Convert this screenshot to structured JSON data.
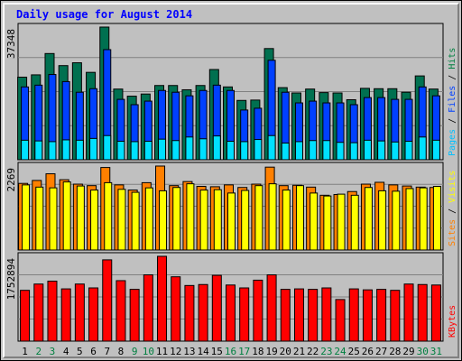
{
  "chart_data": {
    "title": "Daily usage for August 2014",
    "type": "bar",
    "days": [
      "1",
      "2",
      "3",
      "4",
      "5",
      "6",
      "7",
      "8",
      "9",
      "10",
      "11",
      "12",
      "13",
      "14",
      "15",
      "16",
      "17",
      "18",
      "19",
      "20",
      "21",
      "22",
      "23",
      "24",
      "25",
      "26",
      "27",
      "28",
      "29",
      "30",
      "31"
    ],
    "weekend_days": [
      "2",
      "3",
      "9",
      "10",
      "16",
      "17",
      "23",
      "24",
      "30",
      "31"
    ],
    "panels": [
      {
        "id": "hits",
        "ymax_label": "37348",
        "ymax": 37348,
        "ylabel": [
          "Pages",
          " / ",
          "Files",
          " / ",
          "Hits"
        ],
        "ylabel_colors": [
          "#00c0ff",
          "#000000",
          "#0040ff",
          "#000000",
          "#008040"
        ],
        "series": [
          {
            "name": "Hits",
            "color": "#007050",
            "values": [
              23250,
              23900,
              29900,
              26500,
              27300,
              24600,
              37348,
              19900,
              17900,
              18500,
              20900,
              20900,
              19700,
              20900,
              25400,
              20500,
              16700,
              16800,
              31300,
              20300,
              18800,
              19900,
              18900,
              18800,
              16900,
              20100,
              20000,
              20000,
              19000,
              23600,
              19900
            ]
          },
          {
            "name": "Files",
            "color": "#0040ff",
            "values": [
              20500,
              21000,
              24000,
              22000,
              19000,
              20000,
              31000,
              17000,
              15500,
              16500,
              19500,
              19000,
              18000,
              19500,
              21000,
              19500,
              14000,
              14500,
              28000,
              19000,
              16000,
              16500,
              16000,
              16000,
              15500,
              17500,
              17500,
              17000,
              17000,
              20500,
              18000
            ]
          },
          {
            "name": "Pages",
            "color": "#00e0ff",
            "values": [
              5500,
              5300,
              5100,
              5600,
              5500,
              6000,
              6800,
              5200,
              5100,
              5200,
              5800,
              5400,
              6400,
              5900,
              6700,
              5200,
              5100,
              5700,
              6800,
              4700,
              5100,
              5400,
              5400,
              4900,
              4800,
              5500,
              5300,
              5000,
              5200,
              6400,
              5500
            ]
          }
        ]
      },
      {
        "id": "visits",
        "ymax_label": "2269",
        "ymax": 2269,
        "ylabel": [
          "Sites",
          " / ",
          "Visits"
        ],
        "ylabel_colors": [
          "#ff8000",
          "#000000",
          "#ffff00"
        ],
        "series": [
          {
            "name": "Sites",
            "color": "#ff8000",
            "values": [
              1800,
              1880,
              2060,
              1900,
              1780,
              1740,
              2230,
              1760,
              1620,
              1820,
              2269,
              1740,
              1850,
              1720,
              1710,
              1760,
              1690,
              1780,
              2240,
              1740,
              1750,
              1700,
              1480,
              1500,
              1580,
              1780,
              1830,
              1760,
              1730,
              1700,
              1690
            ]
          },
          {
            "name": "Visits",
            "color": "#ffff00",
            "values": [
              1760,
              1700,
              1680,
              1840,
              1730,
              1620,
              1820,
              1640,
              1560,
              1680,
              1600,
              1690,
              1790,
              1620,
              1630,
              1540,
              1610,
              1740,
              1790,
              1620,
              1740,
              1540,
              1460,
              1510,
              1480,
              1690,
              1600,
              1590,
              1660,
              1680,
              1720
            ]
          }
        ]
      },
      {
        "id": "kbytes",
        "ymax_label": "1752894",
        "ymax": 1752894,
        "ylabel": [
          "KBytes"
        ],
        "ylabel_colors": [
          "#ff0000"
        ],
        "series": [
          {
            "name": "KBytes",
            "color": "#ff0000",
            "values": [
              1050000,
              1180000,
              1240000,
              1080000,
              1180000,
              1100000,
              1680000,
              1250000,
              1070000,
              1370000,
              1752894,
              1330000,
              1150000,
              1170000,
              1360000,
              1160000,
              1100000,
              1260000,
              1370000,
              1070000,
              1080000,
              1070000,
              1100000,
              860000,
              1080000,
              1060000,
              1070000,
              1050000,
              1180000,
              1170000,
              1160000
            ]
          }
        ]
      }
    ]
  }
}
